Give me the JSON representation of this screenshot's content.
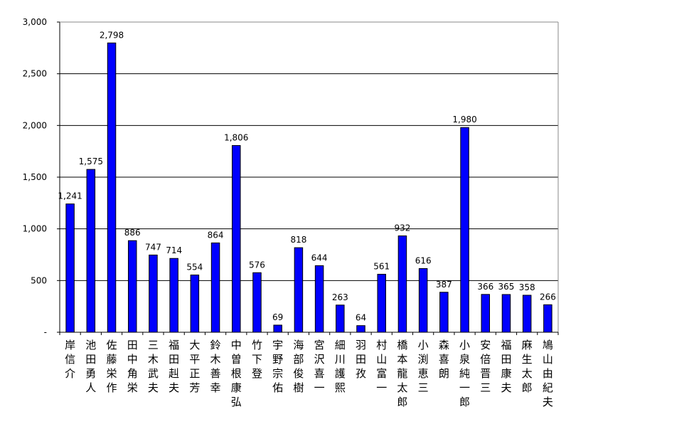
{
  "chart_data": {
    "type": "bar",
    "categories": [
      "岸信介",
      "池田勇人",
      "佐藤栄作",
      "田中角栄",
      "三木武夫",
      "福田赳夫",
      "大平正芳",
      "鈴木善幸",
      "中曽根康弘",
      "竹下登",
      "宇野宗佑",
      "海部俊樹",
      "宮沢喜一",
      "細川護熙",
      "羽田孜",
      "村山富一",
      "橋本龍太郎",
      "小渕恵三",
      "森喜朗",
      "小泉純一郎",
      "安倍晋三",
      "福田康夫",
      "麻生太郎",
      "鳩山由紀夫"
    ],
    "values": [
      1241,
      1575,
      2798,
      886,
      747,
      714,
      554,
      864,
      1806,
      576,
      69,
      818,
      644,
      263,
      64,
      561,
      932,
      616,
      387,
      1980,
      366,
      365,
      358,
      266
    ],
    "value_labels": [
      "1,241",
      "1,575",
      "2,798",
      "886",
      "747",
      "714",
      "554",
      "864",
      "1,806",
      "576",
      "69",
      "818",
      "644",
      "263",
      "64",
      "561",
      "932",
      "616",
      "387",
      "1,980",
      "366",
      "365",
      "358",
      "266"
    ],
    "ylim": [
      0,
      3000
    ],
    "yticks": [
      0,
      500,
      1000,
      1500,
      2000,
      2500,
      3000
    ],
    "ytick_labels": [
      "-",
      "500",
      "1,000",
      "1,500",
      "2,000",
      "2,500",
      "3,000"
    ],
    "bar_color": "#0000ff",
    "grid": true,
    "legend": "none"
  }
}
